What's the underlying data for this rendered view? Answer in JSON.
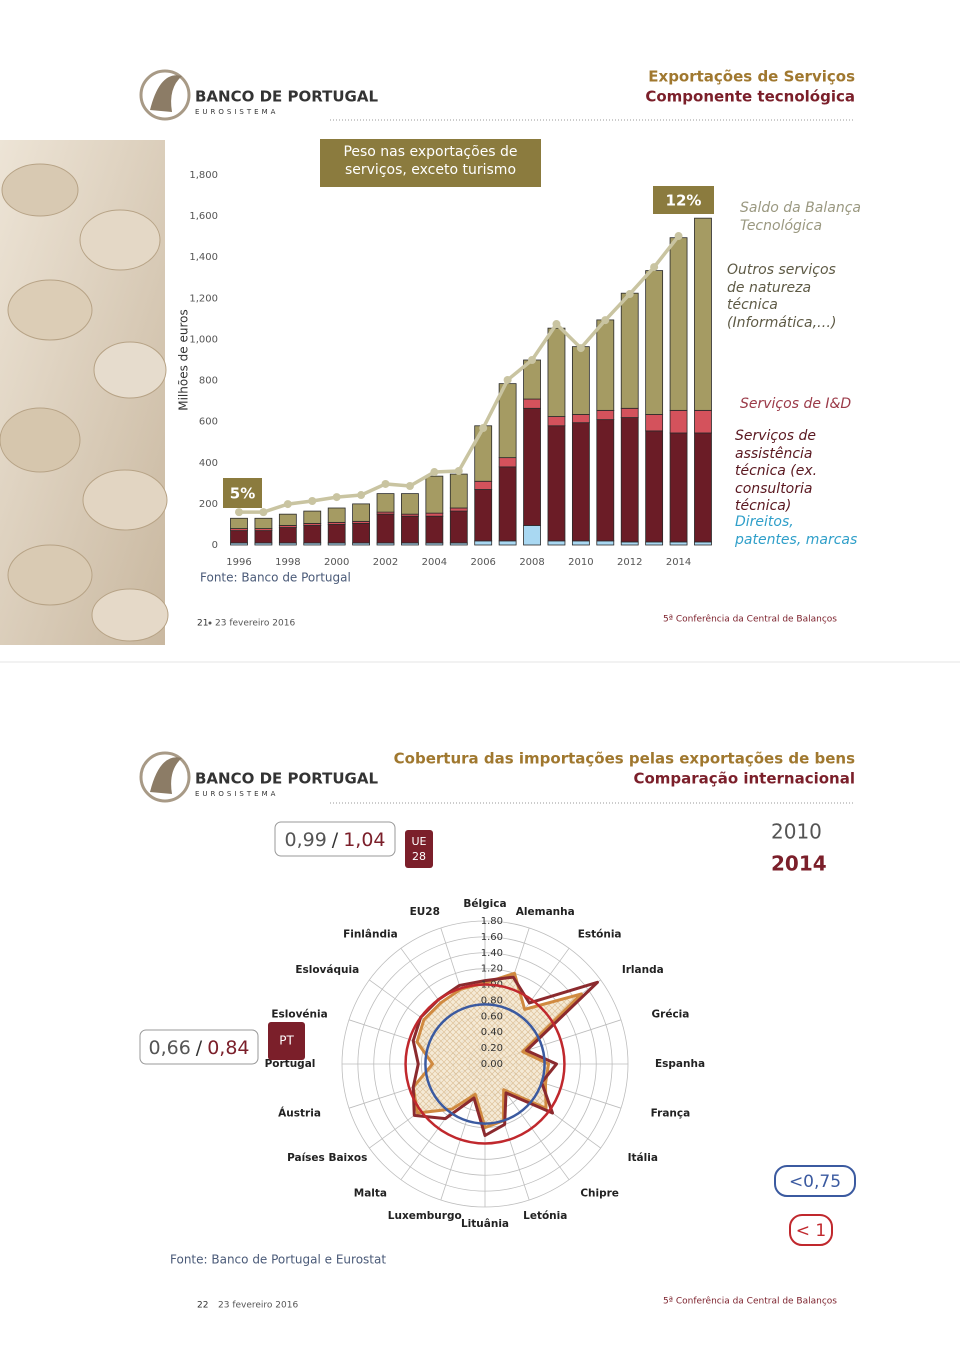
{
  "slides": [
    {
      "header": {
        "brand": "BANCO DE PORTUGAL",
        "sub": "EUROSISTEMA",
        "title": "Exportações de Serviços",
        "subtitle": "Componente tecnológica"
      },
      "source": "Fonte: Banco de Portugal",
      "footer": {
        "page": "21",
        "date": "23 fevereiro 2016",
        "event": "5ª Conferência da Central de Balanços"
      }
    },
    {
      "header": {
        "brand": "BANCO DE PORTUGAL",
        "sub": "EUROSISTEMA",
        "title": "Cobertura das importações pelas exportações de bens",
        "subtitle": "Comparação internacional"
      },
      "source": "Fonte: Banco de Portugal e Eurostat",
      "footer": {
        "page": "22",
        "date": "23 fevereiro 2016",
        "event": "5ª Conferência da Central de Balanços"
      }
    }
  ],
  "chart_data": [
    {
      "type": "stacked_bar",
      "ylabel": "Milhões de euros",
      "categories": [
        "1996",
        null,
        "1998",
        null,
        "2000",
        null,
        "2002",
        null,
        "2004",
        null,
        "2006",
        null,
        "2008",
        null,
        "2010",
        null,
        "2012",
        null,
        "2014",
        null
      ],
      "ylim": [
        0,
        1800
      ],
      "yticks": [
        0,
        200,
        400,
        600,
        800,
        {
          "value": 1000,
          "label": "1,000"
        },
        {
          "value": 1200,
          "label": "1,200"
        },
        {
          "value": 1400,
          "label": "1,400"
        },
        {
          "value": 1600,
          "label": "1,600"
        },
        {
          "value": 1800,
          "label": "1,800"
        }
      ],
      "series": [
        {
          "name": "Direitos, patentes, marcas",
          "color": "#a9d8f2",
          "label_color": "#2f9fc9",
          "values": [
            10,
            10,
            10,
            10,
            10,
            10,
            10,
            10,
            10,
            10,
            20,
            20,
            95,
            20,
            20,
            20,
            15,
            15,
            15,
            15
          ]
        },
        {
          "name": "Serviços de assistência técnica (ex. consultoria técnica)",
          "color": "#6b1c26",
          "label_color": "#5a1820",
          "values": [
            60,
            60,
            75,
            85,
            90,
            95,
            140,
            130,
            130,
            155,
            250,
            360,
            570,
            560,
            575,
            590,
            605,
            540,
            530,
            530
          ]
        },
        {
          "name": "Serviços de I&D",
          "color": "#d4525c",
          "label_color": "#9b3a48",
          "values": [
            10,
            10,
            10,
            10,
            10,
            10,
            10,
            10,
            15,
            15,
            40,
            45,
            45,
            45,
            40,
            45,
            45,
            80,
            110,
            110
          ]
        },
        {
          "name": "Outros serviços de natureza técnica (Informática,…)",
          "color": "#a59b63",
          "label_color": "#5e5a45",
          "values": [
            50,
            50,
            55,
            60,
            70,
            85,
            90,
            100,
            180,
            165,
            270,
            360,
            190,
            430,
            330,
            440,
            560,
            700,
            840,
            935
          ]
        },
        {
          "name": "Saldo da Balança Tecnológica",
          "kind": "line",
          "color": "#c9c4a1",
          "label_color": "#9a9880",
          "values": [
            160,
            160,
            199,
            214,
            233,
            243,
            297,
            287,
            355,
            360,
            569,
            803,
            900,
            1075,
            958,
            1094,
            1221,
            1352,
            1503,
            null
          ]
        }
      ],
      "annotations": {
        "box": "Peso nas exportações de serviços, exceto turismo",
        "start": "5%",
        "end": "12%"
      }
    },
    {
      "type": "radar",
      "categories": [
        "Bélgica",
        "Alemanha",
        "Estónia",
        "Irlanda",
        "Grécia",
        "Espanha",
        "França",
        "Itália",
        "Chipre",
        "Letónia",
        "Lituânia",
        "Luxemburgo",
        "Malta",
        "Países Baixos",
        "Áustria",
        "Portugal",
        "Eslovénia",
        "Eslováquia",
        "Finlândia",
        "EU28"
      ],
      "rlim": [
        0,
        1.8
      ],
      "rticks": [
        {
          "value": 0,
          "label": "0.00"
        },
        {
          "value": 0.2,
          "label": "0.20"
        },
        {
          "value": 0.4,
          "label": "0.40"
        },
        {
          "value": 0.6,
          "label": "0.60"
        },
        {
          "value": 0.8,
          "label": "0.80"
        },
        {
          "value": 1,
          "label": "1.00"
        },
        {
          "value": 1.2,
          "label": "1.20"
        },
        {
          "value": 1.4,
          "label": "1.40"
        },
        {
          "value": 1.6,
          "label": "1.60"
        },
        {
          "value": 1.8,
          "label": "1.80"
        }
      ],
      "series": [
        {
          "name": "2010",
          "color": "#d08a40",
          "label_color": "#555555",
          "hatched": true,
          "values": [
            1.02,
            1.2,
            0.85,
            1.5,
            0.5,
            0.8,
            0.8,
            0.95,
            0.4,
            0.75,
            0.8,
            0.4,
            0.7,
            1.05,
            0.95,
            0.66,
            0.9,
            0.95,
            0.95,
            0.99
          ]
        },
        {
          "name": "2014",
          "color": "#8b2a2e",
          "label_color": "#7b1f2a",
          "values": [
            1.05,
            1.15,
            0.95,
            1.75,
            0.55,
            0.9,
            0.75,
            1.05,
            0.45,
            0.8,
            0.9,
            0.45,
            0.85,
            1.1,
            0.95,
            0.84,
            0.95,
            1.0,
            1.0,
            1.04
          ]
        }
      ],
      "thresholds": [
        {
          "value": 0.75,
          "label": "<0,75",
          "color": "#3b5aa0"
        },
        {
          "value": 1,
          "label": "< 1",
          "color": "#c0282d"
        }
      ],
      "annotations": {
        "eu": [
          "0,99",
          "/",
          "1,04"
        ],
        "eu_box": [
          "UE",
          "28"
        ],
        "pt": [
          "0,66",
          "/",
          "0,84"
        ],
        "pt_box": "PT"
      }
    }
  ]
}
